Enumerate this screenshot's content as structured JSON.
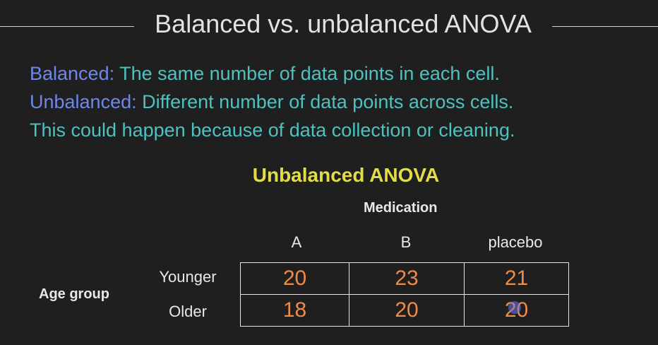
{
  "slide": {
    "title": "Balanced vs. unbalanced ANOVA",
    "definitions": [
      {
        "term": "Balanced:",
        "text": " The same number of data points in each cell."
      },
      {
        "term": "Unbalanced:",
        "text": " Different number of data points across cells."
      },
      {
        "term": "",
        "text": "This could happen because of data collection or cleaning."
      }
    ],
    "table_title": "Unbalanced ANOVA",
    "column_factor": "Medication",
    "row_factor": "Age group",
    "columns": [
      "A",
      "B",
      "placebo"
    ],
    "rows": [
      {
        "label": "Younger",
        "values": [
          "20",
          "23",
          "21"
        ]
      },
      {
        "label": "Older",
        "values": [
          "18",
          "20",
          "20"
        ]
      }
    ]
  },
  "colors": {
    "background": "#1f1f1f",
    "term": "#6f87ea",
    "body_text": "#4ec1c1",
    "table_title": "#e3dc49",
    "cell_value": "#f08a47"
  }
}
